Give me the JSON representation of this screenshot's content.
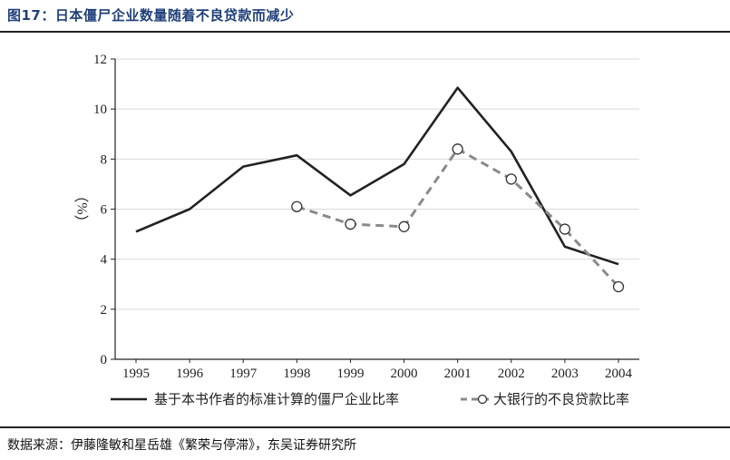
{
  "figure": {
    "title": "图17：日本僵尸企业数量随着不良贷款而减少",
    "source": "数据来源：伊藤隆敏和星岳雄《繁荣与停滞》，东吴证券研究所"
  },
  "chart_data": {
    "type": "line",
    "title": "",
    "xlabel": "",
    "ylabel": "（%）",
    "ylim": [
      0,
      12
    ],
    "yticks": [
      0,
      2,
      4,
      6,
      8,
      10,
      12
    ],
    "x": [
      1995,
      1996,
      1997,
      1998,
      1999,
      2000,
      2001,
      2002,
      2003,
      2004
    ],
    "grid": true,
    "legend_position": "bottom",
    "series": [
      {
        "name": "基于本书作者的标准计算的僵尸企业比率",
        "style": "solid",
        "color": "#222222",
        "points": [
          [
            1995,
            5.1
          ],
          [
            1996,
            6.0
          ],
          [
            1997,
            7.7
          ],
          [
            1998,
            8.15
          ],
          [
            1999,
            6.55
          ],
          [
            2000,
            7.8
          ],
          [
            2001,
            10.85
          ],
          [
            2002,
            8.3
          ],
          [
            2003,
            4.5
          ],
          [
            2004,
            3.8
          ]
        ]
      },
      {
        "name": "大银行的不良贷款比率",
        "style": "dashed-with-circles",
        "color": "#8a8a8a",
        "points": [
          [
            1998,
            6.1
          ],
          [
            1999,
            5.4
          ],
          [
            2000,
            5.3
          ],
          [
            2001,
            8.4
          ],
          [
            2002,
            7.2
          ],
          [
            2003,
            5.2
          ],
          [
            2004,
            2.9
          ]
        ]
      }
    ]
  }
}
